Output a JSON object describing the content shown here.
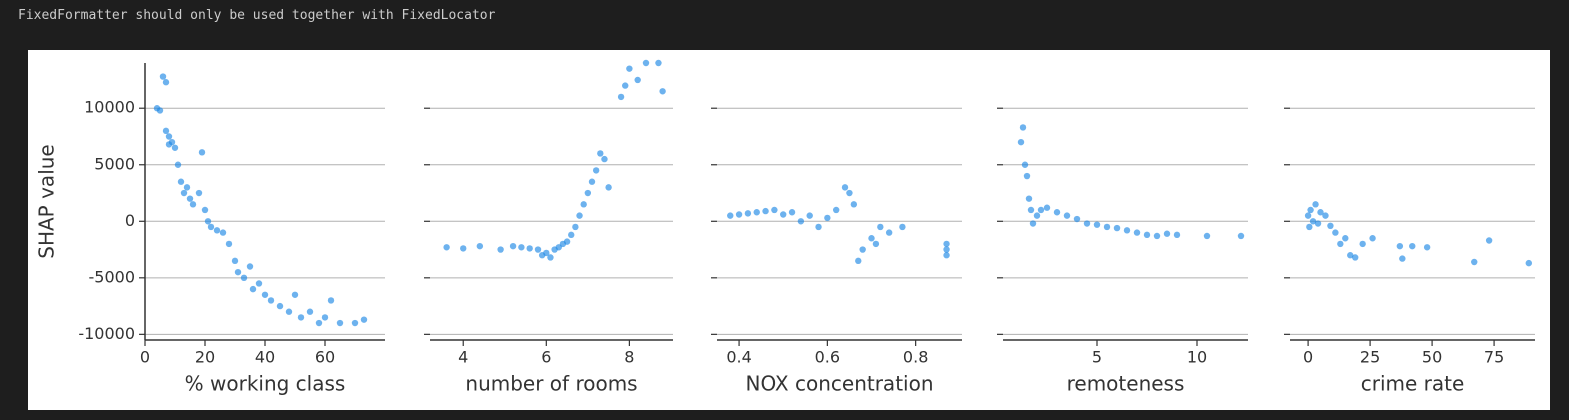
{
  "warning": "FixedFormatter should only be used together with FixedLocator",
  "chart_data": [
    {
      "type": "scatter",
      "xlabel": "% working class",
      "ylabel": "SHAP value",
      "color": "#1e88e5",
      "x": [
        4,
        6,
        7,
        5,
        7,
        8,
        9,
        10,
        8,
        11,
        12,
        13,
        14,
        15,
        16,
        18,
        19,
        20,
        21,
        22,
        24,
        26,
        28,
        30,
        31,
        33,
        35,
        36,
        38,
        40,
        42,
        45,
        48,
        50,
        52,
        55,
        58,
        60,
        62,
        65,
        70,
        73
      ],
      "values": [
        10000,
        12800,
        12300,
        9800,
        8000,
        7500,
        7000,
        6500,
        6800,
        5000,
        3500,
        2500,
        3000,
        2000,
        1500,
        2500,
        6100,
        1000,
        0,
        -500,
        -800,
        -1000,
        -2000,
        -3500,
        -4500,
        -5000,
        -4000,
        -6000,
        -5500,
        -6500,
        -7000,
        -7500,
        -8000,
        -6500,
        -8500,
        -8000,
        -9000,
        -8500,
        -7000,
        -9000,
        -9000,
        -8700
      ],
      "xlim": [
        0,
        80
      ],
      "xticks": [
        0,
        20,
        40,
        60
      ],
      "ylim": [
        -10500,
        14000
      ],
      "yticks": [
        -10000,
        -5000,
        0,
        5000,
        10000
      ],
      "grid": true
    },
    {
      "type": "scatter",
      "xlabel": "number of rooms",
      "color": "#1e88e5",
      "x": [
        3.6,
        4.0,
        4.4,
        4.9,
        5.2,
        5.4,
        5.6,
        5.8,
        5.9,
        6.0,
        6.1,
        6.2,
        6.3,
        6.4,
        6.5,
        6.6,
        6.7,
        6.8,
        6.9,
        7.0,
        7.1,
        7.2,
        7.3,
        7.4,
        7.5,
        7.8,
        8.0,
        8.2,
        8.4,
        8.7,
        8.8,
        7.9
      ],
      "values": [
        -2300,
        -2400,
        -2200,
        -2500,
        -2200,
        -2300,
        -2400,
        -2500,
        -3000,
        -2800,
        -3200,
        -2500,
        -2300,
        -2000,
        -1800,
        -1200,
        -500,
        500,
        1500,
        2500,
        3500,
        4500,
        6000,
        5500,
        3000,
        11000,
        13500,
        12500,
        14000,
        14000,
        11500,
        12000
      ],
      "xlim": [
        3.2,
        9.05
      ],
      "xticks": [
        4,
        6,
        8
      ],
      "ylim": [
        -10500,
        14000
      ],
      "yticks": [
        -10000,
        -5000,
        0,
        5000,
        10000
      ],
      "grid": true
    },
    {
      "type": "scatter",
      "xlabel": "NOX concentration",
      "color": "#1e88e5",
      "x": [
        0.38,
        0.4,
        0.42,
        0.44,
        0.46,
        0.48,
        0.5,
        0.52,
        0.54,
        0.56,
        0.58,
        0.6,
        0.62,
        0.64,
        0.65,
        0.66,
        0.67,
        0.68,
        0.7,
        0.71,
        0.72,
        0.74,
        0.77,
        0.87,
        0.87,
        0.87
      ],
      "values": [
        500,
        600,
        700,
        800,
        900,
        1000,
        600,
        800,
        0,
        500,
        -500,
        300,
        1000,
        3000,
        2500,
        1500,
        -3500,
        -2500,
        -1500,
        -2000,
        -500,
        -1000,
        -500,
        -2500,
        -3000,
        -2000
      ],
      "xlim": [
        0.35,
        0.905
      ],
      "xticks": [
        0.4,
        0.6,
        0.8
      ],
      "ylim": [
        -10500,
        14000
      ],
      "yticks": [
        -10000,
        -5000,
        0,
        5000,
        10000
      ],
      "grid": true
    },
    {
      "type": "scatter",
      "xlabel": "remoteness",
      "color": "#1e88e5",
      "x": [
        1.2,
        1.3,
        1.4,
        1.5,
        1.6,
        1.7,
        1.8,
        2.0,
        2.2,
        2.5,
        3,
        3.5,
        4,
        4.5,
        5,
        5.5,
        6,
        6.5,
        7,
        7.5,
        8,
        8.5,
        9,
        10.5,
        12.2
      ],
      "values": [
        7000,
        8300,
        5000,
        4000,
        2000,
        1000,
        -200,
        500,
        1000,
        1200,
        800,
        500,
        200,
        -200,
        -300,
        -500,
        -600,
        -800,
        -1000,
        -1200,
        -1300,
        -1100,
        -1200,
        -1300,
        -1300
      ],
      "xlim": [
        0.3,
        12.55
      ],
      "xticks": [
        5,
        10
      ],
      "ylim": [
        -10500,
        14000
      ],
      "yticks": [
        -10000,
        -5000,
        0,
        5000,
        10000
      ],
      "grid": true
    },
    {
      "type": "scatter",
      "xlabel": "crime rate",
      "color": "#1e88e5",
      "x": [
        0,
        0.5,
        1,
        2,
        3,
        4,
        5,
        7,
        9,
        11,
        13,
        15,
        17,
        19,
        22,
        26,
        37,
        38,
        42,
        48,
        67,
        73,
        89
      ],
      "values": [
        500,
        -500,
        1000,
        0,
        1500,
        -200,
        800,
        500,
        -400,
        -1000,
        -2000,
        -1500,
        -3000,
        -3200,
        -2000,
        -1500,
        -2200,
        -3300,
        -2200,
        -2300,
        -3600,
        -1700,
        -3700
      ],
      "xlim": [
        -7.3,
        91.5
      ],
      "xticks": [
        0,
        25,
        50,
        75
      ],
      "ylim": [
        -10500,
        14000
      ],
      "yticks": [
        -10000,
        -5000,
        0,
        5000,
        10000
      ],
      "grid": true
    }
  ]
}
